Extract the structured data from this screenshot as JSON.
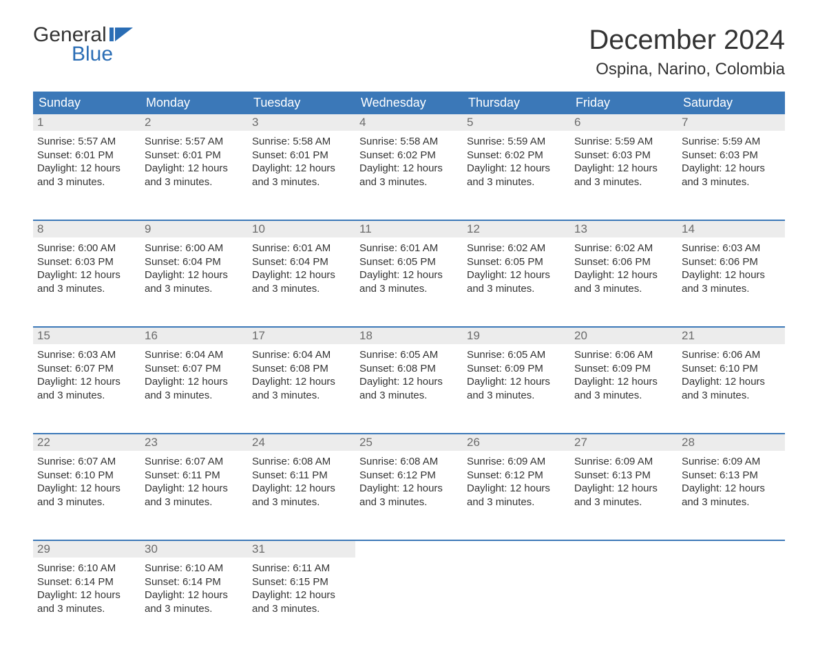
{
  "logo": {
    "word1": "General",
    "word2": "Blue",
    "flag_color": "#2a6db5"
  },
  "title": "December 2024",
  "location": "Ospina, Narino, Colombia",
  "header_bg": "#3b78b8",
  "header_fg": "#ffffff",
  "daynum_bg": "#ececec",
  "daynum_fg": "#6b6b6b",
  "border_color": "#3b78b8",
  "body_text_color": "#333333",
  "day_headers": [
    "Sunday",
    "Monday",
    "Tuesday",
    "Wednesday",
    "Thursday",
    "Friday",
    "Saturday"
  ],
  "weeks": [
    [
      {
        "n": "1",
        "sr": "Sunrise: 5:57 AM",
        "ss": "Sunset: 6:01 PM",
        "d1": "Daylight: 12 hours",
        "d2": "and 3 minutes."
      },
      {
        "n": "2",
        "sr": "Sunrise: 5:57 AM",
        "ss": "Sunset: 6:01 PM",
        "d1": "Daylight: 12 hours",
        "d2": "and 3 minutes."
      },
      {
        "n": "3",
        "sr": "Sunrise: 5:58 AM",
        "ss": "Sunset: 6:01 PM",
        "d1": "Daylight: 12 hours",
        "d2": "and 3 minutes."
      },
      {
        "n": "4",
        "sr": "Sunrise: 5:58 AM",
        "ss": "Sunset: 6:02 PM",
        "d1": "Daylight: 12 hours",
        "d2": "and 3 minutes."
      },
      {
        "n": "5",
        "sr": "Sunrise: 5:59 AM",
        "ss": "Sunset: 6:02 PM",
        "d1": "Daylight: 12 hours",
        "d2": "and 3 minutes."
      },
      {
        "n": "6",
        "sr": "Sunrise: 5:59 AM",
        "ss": "Sunset: 6:03 PM",
        "d1": "Daylight: 12 hours",
        "d2": "and 3 minutes."
      },
      {
        "n": "7",
        "sr": "Sunrise: 5:59 AM",
        "ss": "Sunset: 6:03 PM",
        "d1": "Daylight: 12 hours",
        "d2": "and 3 minutes."
      }
    ],
    [
      {
        "n": "8",
        "sr": "Sunrise: 6:00 AM",
        "ss": "Sunset: 6:03 PM",
        "d1": "Daylight: 12 hours",
        "d2": "and 3 minutes."
      },
      {
        "n": "9",
        "sr": "Sunrise: 6:00 AM",
        "ss": "Sunset: 6:04 PM",
        "d1": "Daylight: 12 hours",
        "d2": "and 3 minutes."
      },
      {
        "n": "10",
        "sr": "Sunrise: 6:01 AM",
        "ss": "Sunset: 6:04 PM",
        "d1": "Daylight: 12 hours",
        "d2": "and 3 minutes."
      },
      {
        "n": "11",
        "sr": "Sunrise: 6:01 AM",
        "ss": "Sunset: 6:05 PM",
        "d1": "Daylight: 12 hours",
        "d2": "and 3 minutes."
      },
      {
        "n": "12",
        "sr": "Sunrise: 6:02 AM",
        "ss": "Sunset: 6:05 PM",
        "d1": "Daylight: 12 hours",
        "d2": "and 3 minutes."
      },
      {
        "n": "13",
        "sr": "Sunrise: 6:02 AM",
        "ss": "Sunset: 6:06 PM",
        "d1": "Daylight: 12 hours",
        "d2": "and 3 minutes."
      },
      {
        "n": "14",
        "sr": "Sunrise: 6:03 AM",
        "ss": "Sunset: 6:06 PM",
        "d1": "Daylight: 12 hours",
        "d2": "and 3 minutes."
      }
    ],
    [
      {
        "n": "15",
        "sr": "Sunrise: 6:03 AM",
        "ss": "Sunset: 6:07 PM",
        "d1": "Daylight: 12 hours",
        "d2": "and 3 minutes."
      },
      {
        "n": "16",
        "sr": "Sunrise: 6:04 AM",
        "ss": "Sunset: 6:07 PM",
        "d1": "Daylight: 12 hours",
        "d2": "and 3 minutes."
      },
      {
        "n": "17",
        "sr": "Sunrise: 6:04 AM",
        "ss": "Sunset: 6:08 PM",
        "d1": "Daylight: 12 hours",
        "d2": "and 3 minutes."
      },
      {
        "n": "18",
        "sr": "Sunrise: 6:05 AM",
        "ss": "Sunset: 6:08 PM",
        "d1": "Daylight: 12 hours",
        "d2": "and 3 minutes."
      },
      {
        "n": "19",
        "sr": "Sunrise: 6:05 AM",
        "ss": "Sunset: 6:09 PM",
        "d1": "Daylight: 12 hours",
        "d2": "and 3 minutes."
      },
      {
        "n": "20",
        "sr": "Sunrise: 6:06 AM",
        "ss": "Sunset: 6:09 PM",
        "d1": "Daylight: 12 hours",
        "d2": "and 3 minutes."
      },
      {
        "n": "21",
        "sr": "Sunrise: 6:06 AM",
        "ss": "Sunset: 6:10 PM",
        "d1": "Daylight: 12 hours",
        "d2": "and 3 minutes."
      }
    ],
    [
      {
        "n": "22",
        "sr": "Sunrise: 6:07 AM",
        "ss": "Sunset: 6:10 PM",
        "d1": "Daylight: 12 hours",
        "d2": "and 3 minutes."
      },
      {
        "n": "23",
        "sr": "Sunrise: 6:07 AM",
        "ss": "Sunset: 6:11 PM",
        "d1": "Daylight: 12 hours",
        "d2": "and 3 minutes."
      },
      {
        "n": "24",
        "sr": "Sunrise: 6:08 AM",
        "ss": "Sunset: 6:11 PM",
        "d1": "Daylight: 12 hours",
        "d2": "and 3 minutes."
      },
      {
        "n": "25",
        "sr": "Sunrise: 6:08 AM",
        "ss": "Sunset: 6:12 PM",
        "d1": "Daylight: 12 hours",
        "d2": "and 3 minutes."
      },
      {
        "n": "26",
        "sr": "Sunrise: 6:09 AM",
        "ss": "Sunset: 6:12 PM",
        "d1": "Daylight: 12 hours",
        "d2": "and 3 minutes."
      },
      {
        "n": "27",
        "sr": "Sunrise: 6:09 AM",
        "ss": "Sunset: 6:13 PM",
        "d1": "Daylight: 12 hours",
        "d2": "and 3 minutes."
      },
      {
        "n": "28",
        "sr": "Sunrise: 6:09 AM",
        "ss": "Sunset: 6:13 PM",
        "d1": "Daylight: 12 hours",
        "d2": "and 3 minutes."
      }
    ],
    [
      {
        "n": "29",
        "sr": "Sunrise: 6:10 AM",
        "ss": "Sunset: 6:14 PM",
        "d1": "Daylight: 12 hours",
        "d2": "and 3 minutes."
      },
      {
        "n": "30",
        "sr": "Sunrise: 6:10 AM",
        "ss": "Sunset: 6:14 PM",
        "d1": "Daylight: 12 hours",
        "d2": "and 3 minutes."
      },
      {
        "n": "31",
        "sr": "Sunrise: 6:11 AM",
        "ss": "Sunset: 6:15 PM",
        "d1": "Daylight: 12 hours",
        "d2": "and 3 minutes."
      },
      null,
      null,
      null,
      null
    ]
  ]
}
